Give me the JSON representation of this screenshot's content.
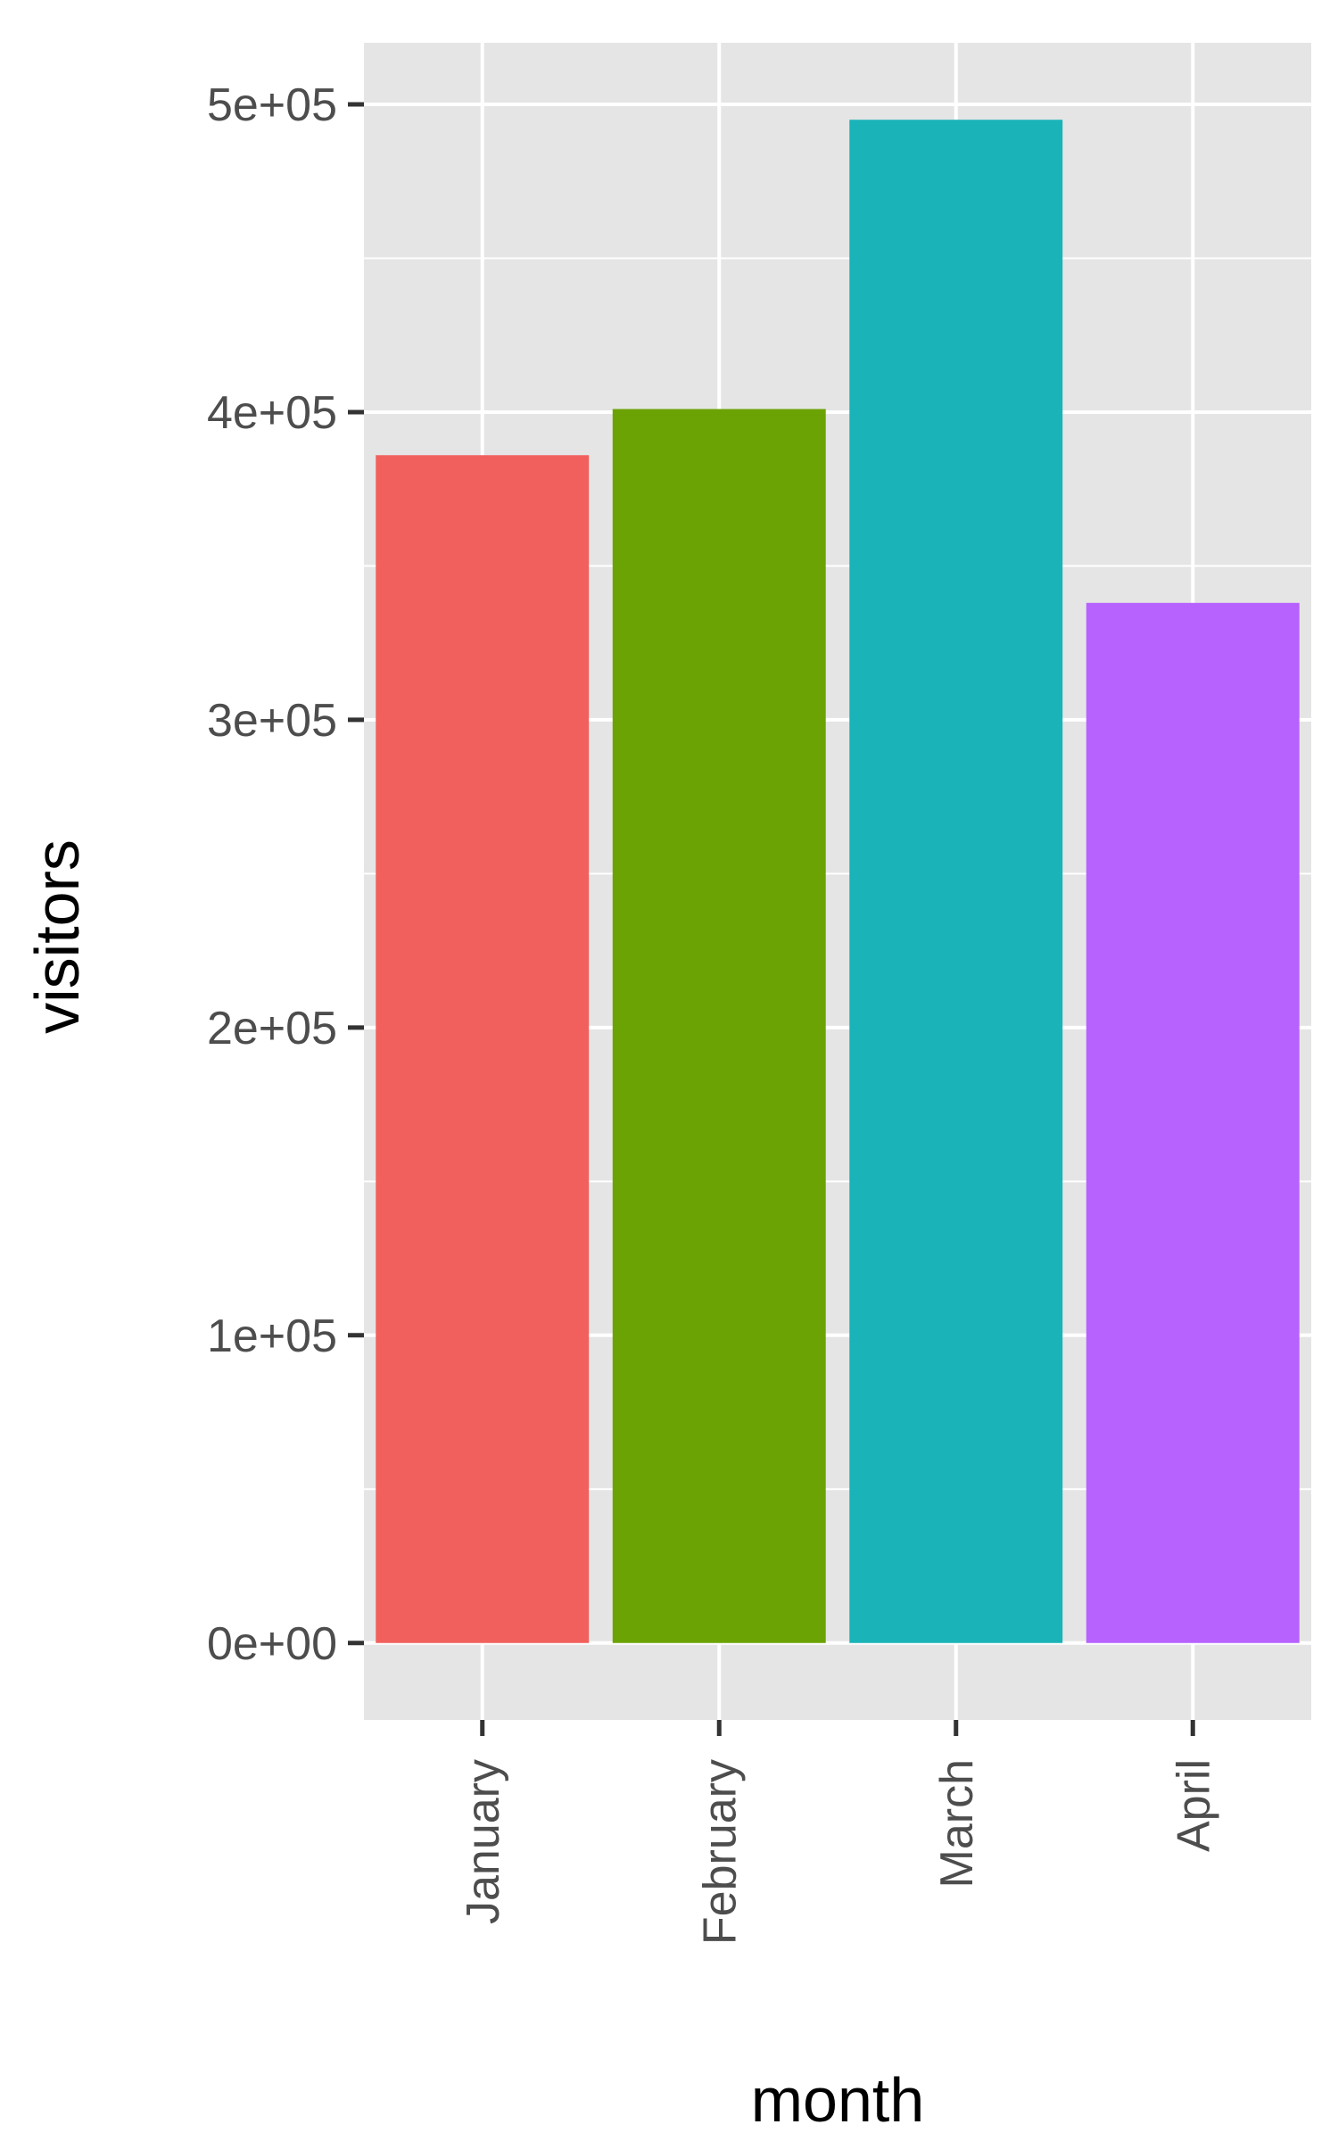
{
  "chart_data": {
    "type": "bar",
    "xlabel": "month",
    "ylabel": "visitors",
    "categories": [
      "January",
      "February",
      "March",
      "April"
    ],
    "values": [
      386000,
      401000,
      495000,
      338000
    ],
    "colors": [
      "#F2605D",
      "#6BA305",
      "#19B3B8",
      "#B762FF"
    ],
    "ylim": [
      -25000,
      520000
    ],
    "yticks": [
      0,
      100000,
      200000,
      300000,
      400000,
      500000
    ],
    "ytick_labels": [
      "0e+00",
      "1e+05",
      "2e+05",
      "3e+05",
      "4e+05",
      "5e+05"
    ],
    "panel_background": "#E5E5E5",
    "grid": true,
    "legend": "none"
  }
}
